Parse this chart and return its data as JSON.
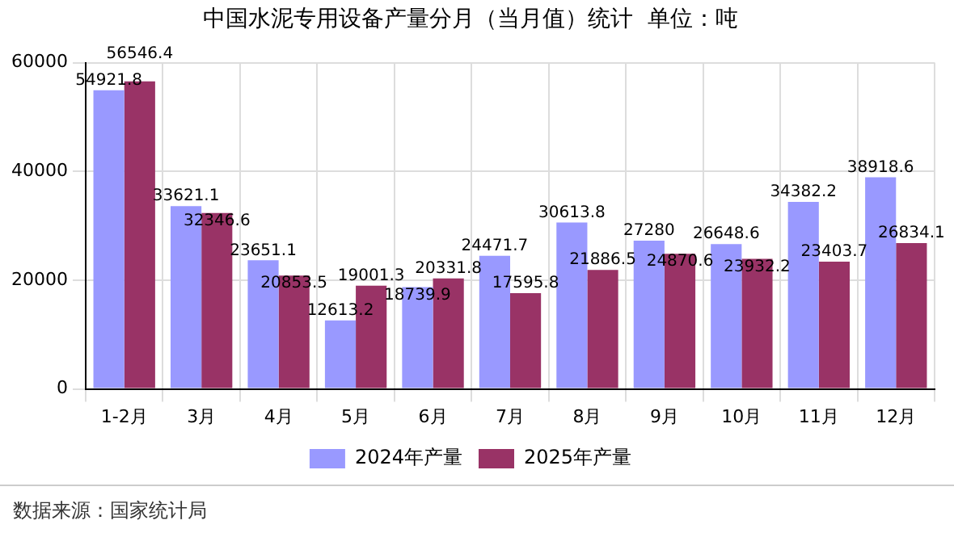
{
  "chart_data": {
    "type": "bar",
    "title": "中国水泥专用设备产量分月（当月值）统计  单位：吨",
    "categories": [
      "1-2月",
      "3月",
      "4月",
      "5月",
      "6月",
      "7月",
      "8月",
      "9月",
      "10月",
      "11月",
      "12月"
    ],
    "series": [
      {
        "name": "2024年产量",
        "color": "#9999ff",
        "values": [
          54921.8,
          33621.1,
          23651.1,
          12613.2,
          18739.9,
          24471.7,
          30613.8,
          27280,
          26648.6,
          34382.2,
          38918.6
        ]
      },
      {
        "name": "2025年产量",
        "color": "#993366",
        "values": [
          56546.4,
          32346.6,
          20853.5,
          19001.3,
          20331.8,
          17595.8,
          21886.5,
          24870.6,
          23932.2,
          23403.7,
          26834.1
        ]
      }
    ],
    "ylim": [
      0,
      60000
    ],
    "yticks": [
      0,
      20000,
      40000,
      60000
    ],
    "grid": true,
    "legend": "bottom",
    "data_labels": true,
    "annotations": [
      "数据来源：国家统计局"
    ]
  }
}
